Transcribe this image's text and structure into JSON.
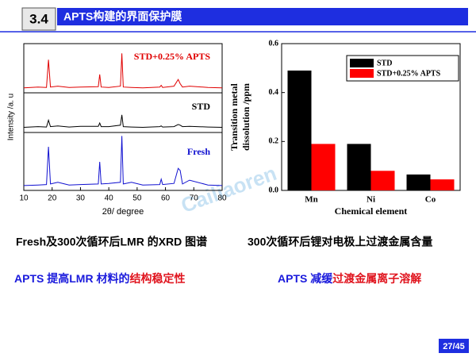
{
  "header": {
    "section": "3.4",
    "title": "APTS构建的界面保护膜"
  },
  "chart_data": [
    {
      "type": "line",
      "ylabel": "Intensity /a. u",
      "xlabel": "2θ/ degree",
      "xlim": [
        10,
        80
      ],
      "xticks": [
        10,
        20,
        30,
        40,
        50,
        60,
        70,
        80
      ],
      "ylim": [
        0,
        100
      ],
      "x": [
        10,
        15,
        18,
        18.7,
        19.4,
        22,
        26,
        30,
        36.3,
        36.8,
        37.3,
        40,
        44.1,
        44.6,
        45.1,
        48,
        52,
        58,
        58.5,
        59,
        63,
        64.5,
        65.2,
        66,
        68.5,
        75,
        80
      ],
      "series": [
        {
          "name": "STD+0.25% APTS",
          "color": "#e00000",
          "values": [
            8,
            10,
            9,
            75,
            10,
            12,
            9,
            10,
            11,
            40,
            10,
            9,
            12,
            90,
            10,
            9,
            8,
            10,
            14,
            9,
            12,
            28,
            18,
            10,
            12,
            9,
            8
          ]
        },
        {
          "name": "STD",
          "color": "#000000",
          "values": [
            10,
            12,
            11,
            30,
            12,
            14,
            11,
            13,
            13,
            22,
            12,
            12,
            16,
            45,
            12,
            11,
            10,
            12,
            14,
            11,
            12,
            18,
            16,
            12,
            13,
            11,
            10
          ]
        },
        {
          "name": "Fresh",
          "color": "#1010d0",
          "values": [
            6,
            7,
            8,
            78,
            9,
            12,
            7,
            8,
            9,
            50,
            9,
            10,
            12,
            98,
            9,
            12,
            7,
            8,
            18,
            8,
            10,
            38,
            34,
            9,
            16,
            7,
            6
          ]
        }
      ]
    },
    {
      "type": "bar",
      "ylabel": [
        "Transition metal",
        "dissolution /ppm"
      ],
      "xlabel": "Chemical element",
      "categories": [
        "Mn",
        "Ni",
        "Co"
      ],
      "ylim": [
        0,
        0.6
      ],
      "yticks": [
        {
          "value": 0,
          "label": "0.0"
        },
        0.2,
        0.4,
        0.6
      ],
      "legend": "upper right",
      "series": [
        {
          "name": "STD",
          "color": "#000000",
          "values": [
            0.49,
            0.19,
            0.065
          ]
        },
        {
          "name": "STD+0.25% APTS",
          "color": "#ff0000",
          "values": [
            0.19,
            0.08,
            0.045
          ]
        }
      ]
    }
  ],
  "captions": [
    "Fresh及300次循环后LMR 的XRD 图谱",
    "300次循环后锂对电极上过渡金属含量"
  ],
  "conclusions": [
    [
      {
        "text": "APTS 提高LMR  材料的",
        "color": "#1a1adc"
      },
      {
        "text": "结构稳定性",
        "color": "#e0141e"
      }
    ],
    [
      {
        "text": "APTS 减缓",
        "color": "#1a1adc"
      },
      {
        "text": "过渡金属离子溶解",
        "color": "#e0141e"
      }
    ]
  ],
  "watermark": "Cailiaoren",
  "page_number": "27/45"
}
